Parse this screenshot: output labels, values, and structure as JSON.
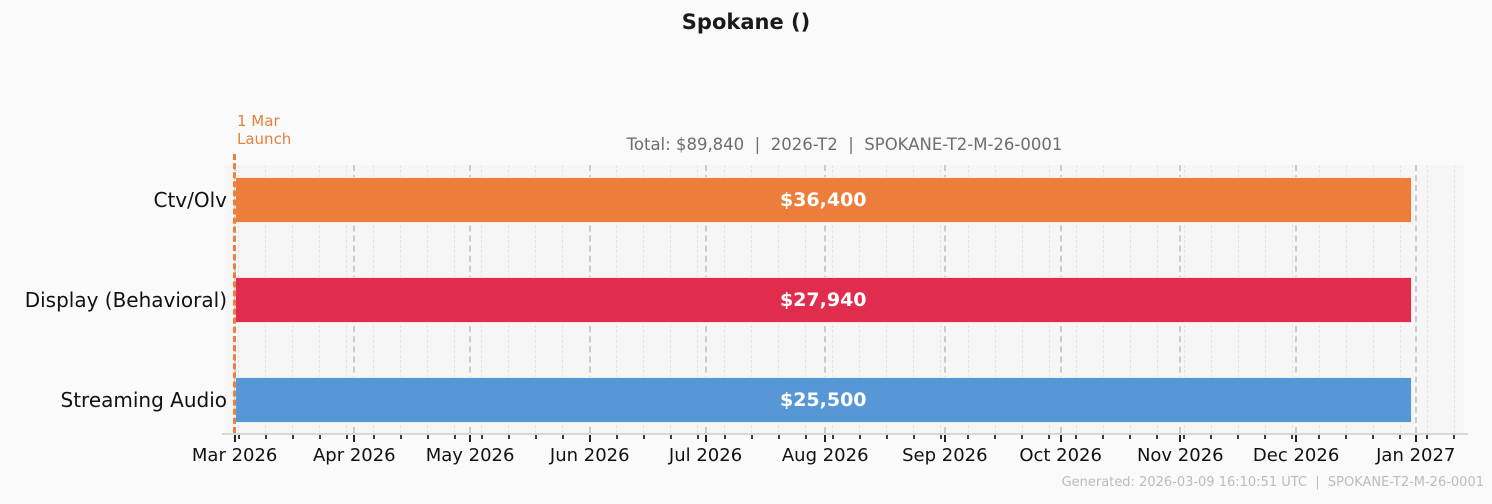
{
  "title": "Spokane ()",
  "subtitle": "Total: $89,840  |  2026-T2  |  SPOKANE-T2-M-26-0001",
  "launch_annotation": {
    "line1": "1 Mar",
    "line2": "Launch"
  },
  "footer": "Generated: 2026-03-09 16:10:51 UTC  |  SPOKANE-T2-M-26-0001",
  "chart_data": {
    "type": "bar",
    "orientation": "horizontal",
    "title": "Spokane ()",
    "subtitle_fields": {
      "total": "$89,840",
      "period": "2026-T2",
      "campaign_code": "SPOKANE-T2-M-26-0001"
    },
    "categories": [
      "Ctv/Olv",
      "Display (Behavioral)",
      "Streaming Audio"
    ],
    "values": [
      36400,
      27940,
      25500
    ],
    "bars": [
      {
        "category": "Ctv/Olv",
        "value": 36400,
        "value_label": "$36,400",
        "start": "2026-03-01",
        "end": "2026-12-31",
        "color": "#ED7D3A"
      },
      {
        "category": "Display (Behavioral)",
        "value": 27940,
        "value_label": "$27,940",
        "start": "2026-03-01",
        "end": "2026-12-31",
        "color": "#E02D4D"
      },
      {
        "category": "Streaming Audio",
        "value": 25500,
        "value_label": "$25,500",
        "start": "2026-03-01",
        "end": "2026-12-31",
        "color": "#5897D6"
      }
    ],
    "x_axis": {
      "tick_labels": [
        "Mar 2026",
        "Apr 2026",
        "May 2026",
        "Jun 2026",
        "Jul 2026",
        "Aug 2026",
        "Sep 2026",
        "Oct 2026",
        "Nov 2026",
        "Dec 2026",
        "Jan 2027"
      ],
      "tick_dates": [
        "2026-03-01",
        "2026-04-01",
        "2026-05-01",
        "2026-06-01",
        "2026-07-01",
        "2026-08-01",
        "2026-09-01",
        "2026-10-01",
        "2026-11-01",
        "2026-12-01",
        "2027-01-01"
      ],
      "minor_tick_start": "2026-03-02",
      "minor_tick_interval_days": 7
    },
    "launch_line": {
      "date": "2026-03-01",
      "label": "1 Mar Launch",
      "color": "#ED803C"
    },
    "grid": true,
    "legend": false,
    "ylim": null
  }
}
